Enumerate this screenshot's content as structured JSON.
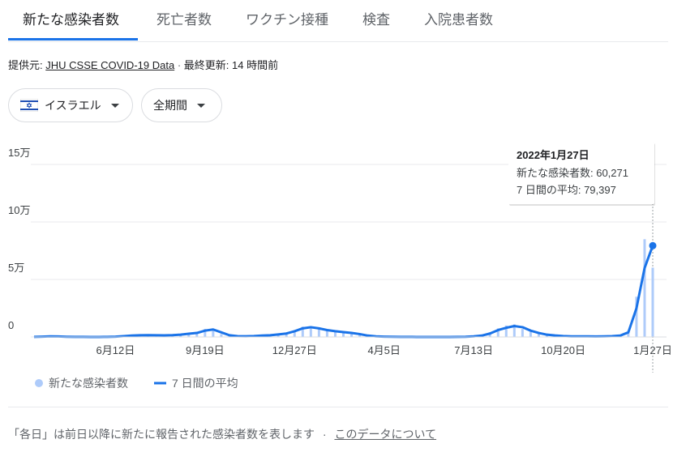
{
  "tabs": [
    "新たな感染者数",
    "死亡者数",
    "ワクチン接種",
    "検査",
    "入院患者数"
  ],
  "source": {
    "label": "提供元:",
    "link": "JHU CSSE COVID-19 Data",
    "separator": "·",
    "updated": "最終更新: 14 時間前"
  },
  "filters": [
    "イスラエル",
    "全期間"
  ],
  "chart_data": {
    "type": "combo",
    "categories": [
      null,
      null,
      null,
      null,
      null,
      null,
      null,
      null,
      null,
      null,
      "6月12日",
      null,
      null,
      null,
      null,
      null,
      null,
      null,
      null,
      null,
      null,
      "9月19日",
      null,
      null,
      null,
      null,
      null,
      null,
      null,
      null,
      null,
      null,
      "12月27日",
      null,
      null,
      null,
      null,
      null,
      null,
      null,
      null,
      null,
      null,
      "4月5日",
      null,
      null,
      null,
      null,
      null,
      null,
      null,
      null,
      null,
      null,
      "7月13日",
      null,
      null,
      null,
      null,
      null,
      null,
      null,
      null,
      null,
      null,
      "10月20日",
      null,
      null,
      null,
      null,
      null,
      null,
      null,
      null,
      null,
      null,
      "1月27日"
    ],
    "series": [
      {
        "name": "新たな感染者数",
        "type": "bar",
        "color": "#aecbfa",
        "values": [
          150,
          400,
          600,
          350,
          150,
          80,
          40,
          20,
          30,
          150,
          400,
          900,
          1500,
          1800,
          1700,
          1400,
          1500,
          1900,
          2600,
          3300,
          4500,
          7000,
          6000,
          2500,
          1000,
          600,
          700,
          900,
          1400,
          1800,
          2600,
          3800,
          6000,
          9000,
          8000,
          7000,
          5500,
          4600,
          3800,
          3000,
          2000,
          900,
          400,
          200,
          120,
          80,
          40,
          30,
          15,
          20,
          40,
          50,
          120,
          300,
          800,
          1800,
          4000,
          7500,
          10000,
          11000,
          7000,
          4500,
          2800,
          1500,
          1000,
          650,
          500,
          450,
          480,
          420,
          600,
          800,
          1600,
          5500,
          35000,
          85000,
          60271
        ]
      },
      {
        "name": "7 日間の平均",
        "type": "line",
        "color": "#1a73e8",
        "values": [
          100,
          300,
          500,
          400,
          200,
          100,
          50,
          30,
          20,
          100,
          300,
          700,
          1200,
          1500,
          1600,
          1500,
          1400,
          1600,
          2000,
          2800,
          3500,
          5500,
          6500,
          4000,
          1500,
          700,
          600,
          800,
          1200,
          1500,
          2200,
          3000,
          5000,
          7500,
          8500,
          7500,
          6000,
          5000,
          4200,
          3500,
          2500,
          1200,
          500,
          250,
          150,
          100,
          60,
          40,
          20,
          20,
          30,
          40,
          80,
          200,
          500,
          1200,
          3000,
          6000,
          8000,
          9500,
          8500,
          5500,
          3500,
          2000,
          1300,
          800,
          550,
          500,
          500,
          450,
          550,
          700,
          1200,
          4000,
          25000,
          60000,
          79397
        ]
      }
    ],
    "ylim": [
      0,
      150000
    ],
    "yticks": [
      0,
      {
        "value": 50000,
        "label": "5万"
      },
      {
        "value": 100000,
        "label": "10万"
      },
      {
        "value": 150000,
        "label": "15万"
      }
    ],
    "grid": true,
    "tooltip": {
      "title": "2022年1月27日",
      "lines": [
        "新たな感染者数: 60,271",
        "7 日間の平均: 79,397"
      ]
    }
  },
  "footer": {
    "note": "「各日」は前日以降に新たに報告された感染者数を表します",
    "link": "このデータについて"
  }
}
